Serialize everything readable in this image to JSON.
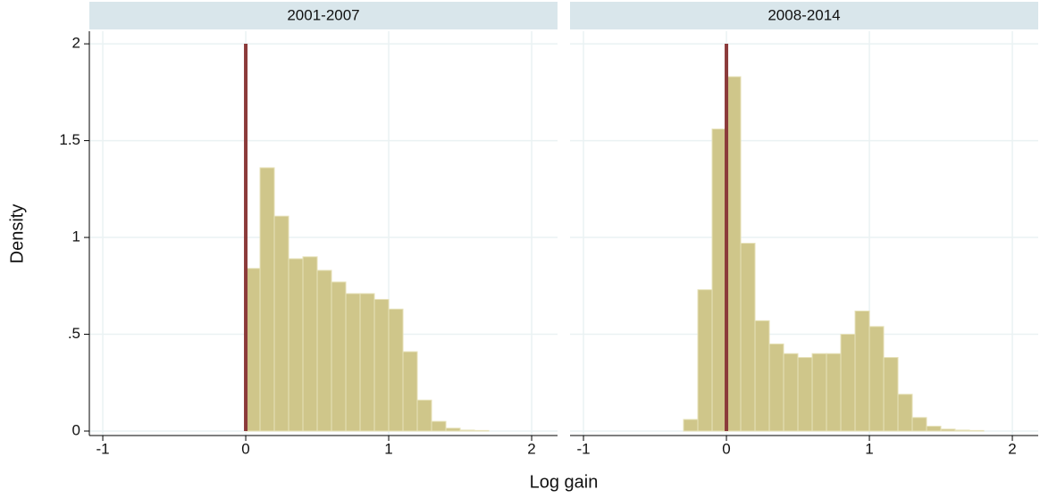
{
  "chart_data": [
    {
      "type": "histogram",
      "title": "2001-2007",
      "bins": [
        0,
        0.1,
        0.2,
        0.3,
        0.4,
        0.5,
        0.6,
        0.7,
        0.8,
        0.9,
        1.0,
        1.1,
        1.2,
        1.3,
        1.4,
        1.5,
        1.6,
        1.7
      ],
      "values": [
        0.84,
        1.36,
        1.11,
        0.89,
        0.9,
        0.83,
        0.77,
        0.71,
        0.71,
        0.68,
        0.63,
        0.41,
        0.16,
        0.05,
        0.015,
        0.005,
        0.003
      ],
      "color": "#cfc68a",
      "xline": 0,
      "xline_color": "#8b3a3a",
      "xlim": [
        -1.094,
        2.181
      ],
      "ylim": [
        -0.023,
        2.065
      ],
      "xticks": [
        -1,
        0,
        1,
        2
      ],
      "yticks": [
        0,
        {
          "value": 0.5,
          "label": ".5"
        },
        1,
        1.5,
        2
      ],
      "grid": true
    },
    {
      "type": "histogram",
      "title": "2008-2014",
      "bins": [
        -0.3,
        -0.2,
        -0.1,
        0,
        0.1,
        0.2,
        0.3,
        0.4,
        0.5,
        0.6,
        0.7,
        0.8,
        0.9,
        1.0,
        1.1,
        1.2,
        1.3,
        1.4,
        1.5,
        1.6,
        1.7,
        1.8
      ],
      "values": [
        0.06,
        0.73,
        1.56,
        1.83,
        0.97,
        0.57,
        0.45,
        0.4,
        0.38,
        0.4,
        0.4,
        0.5,
        0.62,
        0.54,
        0.38,
        0.19,
        0.07,
        0.025,
        0.01,
        0.005,
        0.003
      ],
      "color": "#cfc68a",
      "xline": 0,
      "xline_color": "#8b3a3a",
      "xlim": [
        -1.094,
        2.181
      ],
      "ylim": [
        -0.023,
        2.065
      ],
      "xticks": [
        -1,
        0,
        1,
        2
      ],
      "yticks": [
        0,
        {
          "value": 0.5,
          "label": ".5"
        },
        1,
        1.5,
        2
      ],
      "grid": true
    }
  ],
  "xlabel": "Log gain",
  "ylabel": "Density"
}
